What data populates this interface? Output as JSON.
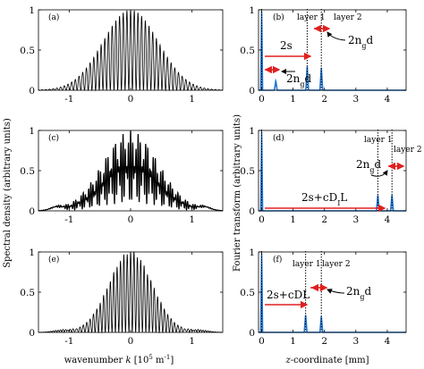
{
  "left_column": {
    "ylabel": "Spectral density (arbitrary units)",
    "xlabel_pre": "wavenumber ",
    "xlabel_var": "k",
    "xlabel_unit": " [10",
    "xlabel_sup1": "5",
    "xlabel_unit2": " m",
    "xlabel_sup2": "-1",
    "xlabel_close": "]"
  },
  "right_column": {
    "ylabel": "Fourier transform (arbitrary units)",
    "xlabel_var": "z",
    "xlabel_rest": "-coordinate [mm]"
  },
  "labels": {
    "a": "(a)",
    "b": "(b)",
    "c": "(c)",
    "d": "(d)",
    "e": "(e)",
    "f": "(f)",
    "layer1": "layer 1",
    "layer2": "layer 2",
    "two_s": "2s",
    "ng_main": "2n",
    "ng_sub": "g",
    "ng_d": "d",
    "cdl_pre": "2s+cD",
    "cdl_sub": "I",
    "cdl_post": "L",
    "cdl_plain": "2s+cDL"
  },
  "colors": {
    "spectrum": "#000000",
    "fourier": "#1f77d2",
    "arrow": "#e02020"
  },
  "chart_data": [
    {
      "panel": "(a)",
      "type": "line",
      "xlim": [
        -1.5,
        1.5
      ],
      "ylim": [
        0,
        1
      ],
      "xticks": [
        -1,
        0,
        1
      ],
      "yticks": [
        0,
        0.5,
        1
      ],
      "envelope": {
        "shape": "gaussian",
        "center": 0,
        "sigma": 0.45,
        "peak": 1
      },
      "fringes": "dense oscillation, fringe period ~0.06"
    },
    {
      "panel": "(b)",
      "type": "line",
      "xlim": [
        -0.1,
        4.6
      ],
      "ylim": [
        0,
        1
      ],
      "xticks": [
        0,
        1,
        2,
        3,
        4
      ],
      "yticks": [
        0,
        0.5,
        1
      ],
      "peaks": [
        {
          "x": 0.0,
          "y": 1.0
        },
        {
          "x": 0.45,
          "y": 0.12
        },
        {
          "x": 1.45,
          "y": 0.3
        },
        {
          "x": 1.9,
          "y": 0.28
        }
      ],
      "dotted_lines_x": [
        0.0,
        1.45,
        1.9
      ]
    },
    {
      "panel": "(c)",
      "type": "line",
      "xlim": [
        -1.5,
        1.5
      ],
      "ylim": [
        0,
        1
      ],
      "xticks": [
        -1,
        0,
        1
      ],
      "yticks": [
        0,
        0.5,
        1
      ],
      "envelope": {
        "shape": "gaussian",
        "center": 0,
        "sigma": 0.45,
        "peak": 1
      },
      "fringes": "very dense oscillation producing a filled appearance"
    },
    {
      "panel": "(d)",
      "type": "line",
      "xlim": [
        -0.1,
        4.6
      ],
      "ylim": [
        0,
        1
      ],
      "xticks": [
        0,
        1,
        2,
        3,
        4
      ],
      "yticks": [
        0,
        0.5,
        1
      ],
      "peaks": [
        {
          "x": 0.0,
          "y": 1.0
        },
        {
          "x": 3.7,
          "y": 0.2
        },
        {
          "x": 4.15,
          "y": 0.2
        }
      ],
      "dotted_lines_x": [
        0.0,
        3.7,
        4.15
      ]
    },
    {
      "panel": "(e)",
      "type": "line",
      "xlim": [
        -1.5,
        1.5
      ],
      "ylim": [
        0,
        1
      ],
      "xticks": [
        -1,
        0,
        1
      ],
      "yticks": [
        0,
        0.5,
        1
      ],
      "envelope": {
        "shape": "gaussian",
        "center": 0,
        "sigma": 0.35,
        "peak": 1
      },
      "fringes": "dense oscillation, fringe period ~0.055"
    },
    {
      "panel": "(f)",
      "type": "line",
      "xlim": [
        -0.1,
        4.6
      ],
      "ylim": [
        0,
        1
      ],
      "xticks": [
        0,
        1,
        2,
        3,
        4
      ],
      "yticks": [
        0,
        0.5,
        1
      ],
      "peaks": [
        {
          "x": 0.0,
          "y": 1.0
        },
        {
          "x": 1.4,
          "y": 0.22
        },
        {
          "x": 1.9,
          "y": 0.2
        }
      ],
      "dotted_lines_x": [
        0.0,
        1.4,
        1.9
      ]
    }
  ]
}
